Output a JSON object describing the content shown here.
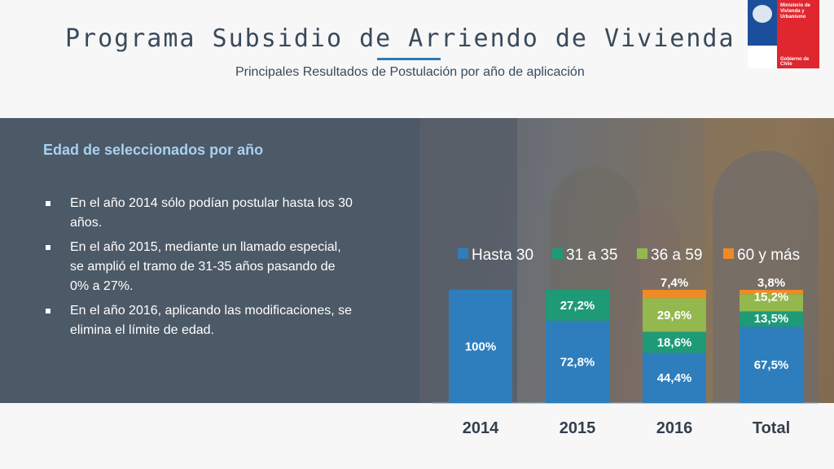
{
  "header": {
    "title": "Programa Subsidio de Arriendo de Vivienda",
    "subtitle": "Principales Resultados de Postulación por año de aplicación",
    "logo_text": "Ministerio de Vivienda y Urbanismo",
    "logo_footer": "Gobierno de Chile"
  },
  "panel": {
    "heading": "Edad de seleccionados por año",
    "bullets": [
      "En el año 2014 sólo podían postular hasta los 30 años.",
      "En el año 2015, mediante un llamado especial, se amplió el tramo de 31-35 años pasando de 0% a 27%.",
      "En el año 2016, aplicando las modificaciones, se elimina el límite de edad."
    ]
  },
  "colors": {
    "hasta30": "#2e7ebd",
    "a31_35": "#1f9a77",
    "a36_59": "#93b84e",
    "mas60": "#f08a24"
  },
  "chart_data": {
    "type": "bar",
    "stacked": true,
    "categories": [
      "2014",
      "2015",
      "2016",
      "Total"
    ],
    "series": [
      {
        "name": "Hasta 30",
        "values": [
          100,
          72.8,
          44.4,
          67.5
        ],
        "labels": [
          "100%",
          "72,8%",
          "44,4%",
          "67,5%"
        ]
      },
      {
        "name": "31 a 35",
        "values": [
          0,
          27.2,
          18.6,
          13.5
        ],
        "labels": [
          "",
          "27,2%",
          "18,6%",
          "13,5%"
        ]
      },
      {
        "name": "36 a 59",
        "values": [
          0,
          0,
          29.6,
          15.2
        ],
        "labels": [
          "",
          "",
          "29,6%",
          "15,2%"
        ]
      },
      {
        "name": "60 y más",
        "values": [
          0,
          0,
          7.4,
          3.8
        ],
        "labels": [
          "",
          "",
          "7,4%",
          "3,8%"
        ]
      }
    ],
    "ylim": [
      0,
      100
    ],
    "legend_position": "top"
  }
}
